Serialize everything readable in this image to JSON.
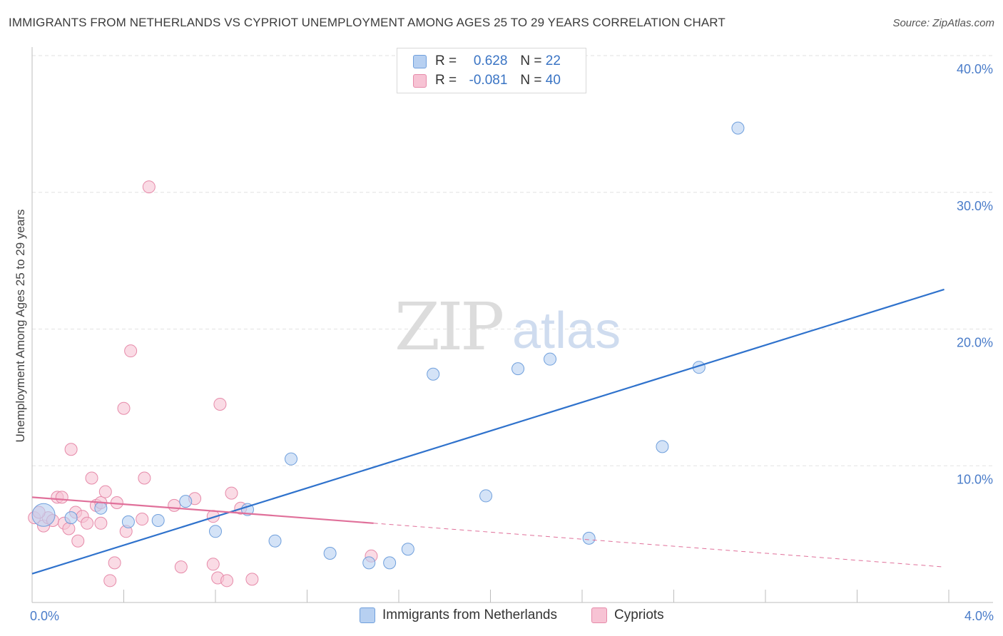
{
  "title": "IMMIGRANTS FROM NETHERLANDS VS CYPRIOT UNEMPLOYMENT AMONG AGES 25 TO 29 YEARS CORRELATION CHART",
  "source": "Source: ZipAtlas.com",
  "watermark": {
    "zip": "ZIP",
    "atlas": "atlas"
  },
  "legend": {
    "rows": [
      {
        "r_label": "R =",
        "r_value": "0.628",
        "n_label": "N =",
        "n_value": "22"
      },
      {
        "r_label": "R =",
        "r_value": "-0.081",
        "n_label": "N =",
        "n_value": "40"
      }
    ]
  },
  "colors": {
    "blue_fill": "#b7d0f1",
    "blue_stroke": "#6f9fdc",
    "blue_line": "#2f72cc",
    "pink_fill": "#f7c3d4",
    "pink_stroke": "#e68aa9",
    "pink_line": "#e0709a",
    "grid": "#e2e2e2",
    "axis_text": "#4a7cc9"
  },
  "chart_data": {
    "type": "scatter",
    "title": "IMMIGRANTS FROM NETHERLANDS VS CYPRIOT UNEMPLOYMENT AMONG AGES 25 TO 29 YEARS CORRELATION CHART",
    "xlabel": "",
    "ylabel": "Unemployment Among Ages 25 to 29 years",
    "xlim": [
      0,
      4.0
    ],
    "ylim": [
      0,
      40.0
    ],
    "x_tick_labels": [
      "0.0%",
      "4.0%"
    ],
    "y_ticks": [
      10,
      20,
      30,
      40
    ],
    "y_tick_labels": [
      "10.0%",
      "20.0%",
      "30.0%",
      "40.0%"
    ],
    "grid": true,
    "legend_position": "bottom",
    "series": [
      {
        "name": "Immigrants from Netherlands",
        "color": "blue",
        "R": 0.628,
        "N": 22,
        "points": [
          {
            "x": 0.05,
            "y": 6.4,
            "big": true
          },
          {
            "x": 0.17,
            "y": 6.2
          },
          {
            "x": 0.3,
            "y": 6.9
          },
          {
            "x": 0.42,
            "y": 5.9
          },
          {
            "x": 0.55,
            "y": 6.0
          },
          {
            "x": 0.67,
            "y": 7.4
          },
          {
            "x": 0.8,
            "y": 5.2
          },
          {
            "x": 0.94,
            "y": 6.8
          },
          {
            "x": 1.06,
            "y": 4.5
          },
          {
            "x": 1.13,
            "y": 10.5
          },
          {
            "x": 1.3,
            "y": 3.6
          },
          {
            "x": 1.47,
            "y": 2.9
          },
          {
            "x": 1.56,
            "y": 2.9
          },
          {
            "x": 1.64,
            "y": 3.9
          },
          {
            "x": 1.75,
            "y": 16.7
          },
          {
            "x": 1.98,
            "y": 7.8
          },
          {
            "x": 2.12,
            "y": 17.1
          },
          {
            "x": 2.26,
            "y": 17.8
          },
          {
            "x": 2.43,
            "y": 4.7
          },
          {
            "x": 2.75,
            "y": 11.4
          },
          {
            "x": 2.91,
            "y": 17.2
          },
          {
            "x": 3.08,
            "y": 34.7
          }
        ],
        "trend": {
          "x0": 0.0,
          "y0": 2.1,
          "x1": 3.98,
          "y1": 22.9
        }
      },
      {
        "name": "Cypriots",
        "color": "pink",
        "R": -0.081,
        "N": 40,
        "points": [
          {
            "x": 0.01,
            "y": 6.2
          },
          {
            "x": 0.05,
            "y": 5.6
          },
          {
            "x": 0.07,
            "y": 6.2
          },
          {
            "x": 0.09,
            "y": 6.0
          },
          {
            "x": 0.11,
            "y": 7.7
          },
          {
            "x": 0.13,
            "y": 7.7
          },
          {
            "x": 0.14,
            "y": 5.8
          },
          {
            "x": 0.16,
            "y": 5.4
          },
          {
            "x": 0.17,
            "y": 11.2
          },
          {
            "x": 0.19,
            "y": 6.6
          },
          {
            "x": 0.2,
            "y": 4.5
          },
          {
            "x": 0.22,
            "y": 6.3
          },
          {
            "x": 0.24,
            "y": 5.8
          },
          {
            "x": 0.26,
            "y": 9.1
          },
          {
            "x": 0.28,
            "y": 7.1
          },
          {
            "x": 0.3,
            "y": 5.8
          },
          {
            "x": 0.3,
            "y": 7.3
          },
          {
            "x": 0.32,
            "y": 8.1
          },
          {
            "x": 0.34,
            "y": 1.6
          },
          {
            "x": 0.36,
            "y": 2.9
          },
          {
            "x": 0.37,
            "y": 7.3
          },
          {
            "x": 0.4,
            "y": 14.2
          },
          {
            "x": 0.41,
            "y": 5.2
          },
          {
            "x": 0.43,
            "y": 18.4
          },
          {
            "x": 0.48,
            "y": 6.1
          },
          {
            "x": 0.49,
            "y": 9.1
          },
          {
            "x": 0.51,
            "y": 30.4
          },
          {
            "x": 0.62,
            "y": 7.1
          },
          {
            "x": 0.65,
            "y": 2.6
          },
          {
            "x": 0.71,
            "y": 7.6
          },
          {
            "x": 0.79,
            "y": 6.3
          },
          {
            "x": 0.79,
            "y": 2.8
          },
          {
            "x": 0.81,
            "y": 1.8
          },
          {
            "x": 0.82,
            "y": 14.5
          },
          {
            "x": 0.85,
            "y": 1.6
          },
          {
            "x": 0.87,
            "y": 8.0
          },
          {
            "x": 0.91,
            "y": 6.9
          },
          {
            "x": 0.96,
            "y": 1.7
          },
          {
            "x": 1.48,
            "y": 3.4
          },
          {
            "x": 0.03,
            "y": 6.6
          }
        ],
        "trend_solid": {
          "x0": 0.0,
          "y0": 7.7,
          "x1": 1.49,
          "y1": 5.8
        },
        "trend_dashed": {
          "x0": 1.49,
          "y0": 5.8,
          "x1": 3.98,
          "y1": 2.6
        }
      }
    ]
  }
}
